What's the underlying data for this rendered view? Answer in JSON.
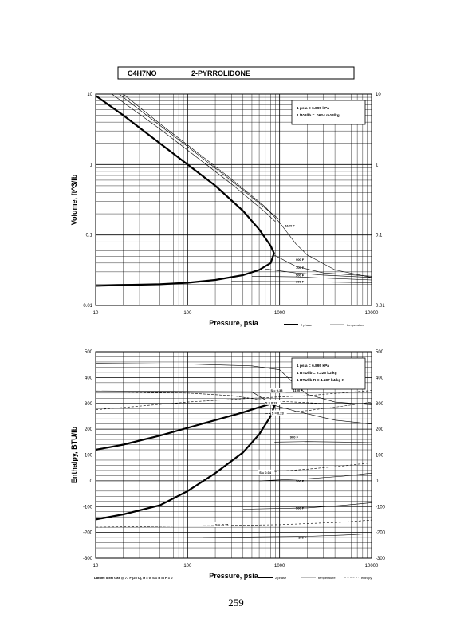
{
  "header": {
    "formula": "C4H7NO",
    "compound": "2-PYRROLIDONE"
  },
  "page_number": "259",
  "chart_data": [
    {
      "type": "line",
      "title": "",
      "xlabel": "Pressure,  psia",
      "ylabel": "Volume, ft^3/lb",
      "xscale": "log",
      "yscale": "log",
      "xlim": [
        10,
        10000
      ],
      "ylim": [
        0.01,
        10
      ],
      "x_ticks": [
        "10",
        "100",
        "1000",
        "10000"
      ],
      "y_ticks_left": [
        "10",
        "1",
        "0.1",
        "0.01"
      ],
      "y_ticks_right": [
        "10",
        "1",
        "0.1",
        "0.01"
      ],
      "grid": true,
      "conversion_box": [
        "1 psia  =  6.895 kPa",
        "1 ft^3/lb  =  .0624 m^3/kg"
      ],
      "legend": {
        "placement": "bottom-right",
        "entries": [
          "2 phase",
          "temperature"
        ]
      },
      "isotherm_labels": [
        "1100 F",
        "900 F",
        "700 F",
        "500 F",
        "300 F"
      ],
      "series": [
        {
          "kind": "2 phase",
          "points": [
            [
              10,
              9.5
            ],
            [
              20,
              5.0
            ],
            [
              50,
              2.0
            ],
            [
              100,
              1.0
            ],
            [
              200,
              0.5
            ],
            [
              400,
              0.22
            ],
            [
              600,
              0.12
            ],
            [
              800,
              0.07
            ],
            [
              870,
              0.055
            ],
            [
              800,
              0.04
            ],
            [
              600,
              0.032
            ],
            [
              400,
              0.027
            ],
            [
              200,
              0.023
            ],
            [
              100,
              0.021
            ],
            [
              50,
              0.02
            ],
            [
              20,
              0.0195
            ],
            [
              10,
              0.019
            ]
          ]
        },
        {
          "kind": "temperature",
          "points": [
            [
              20,
              10
            ],
            [
              50,
              3.8
            ],
            [
              100,
              1.9
            ],
            [
              300,
              0.62
            ],
            [
              700,
              0.25
            ],
            [
              1000,
              0.15
            ],
            [
              1200,
              0.11
            ],
            [
              1500,
              0.075
            ],
            [
              2000,
              0.052
            ],
            [
              4000,
              0.032
            ],
            [
              10000,
              0.025
            ]
          ]
        },
        {
          "kind": "temperature",
          "points": [
            [
              18,
              10
            ],
            [
              50,
              3.6
            ],
            [
              100,
              1.8
            ],
            [
              300,
              0.59
            ],
            [
              700,
              0.24
            ],
            [
              1000,
              0.165
            ]
          ]
        },
        {
          "kind": "temperature",
          "points": [
            [
              15,
              10
            ],
            [
              50,
              3.2
            ],
            [
              100,
              1.6
            ],
            [
              300,
              0.53
            ],
            [
              700,
              0.21
            ],
            [
              900,
              0.155
            ]
          ]
        },
        {
          "kind": "temperature",
          "points": [
            [
              870,
              0.052
            ],
            [
              1500,
              0.036
            ],
            [
              3000,
              0.029
            ],
            [
              10000,
              0.026
            ]
          ]
        },
        {
          "kind": "temperature",
          "points": [
            [
              700,
              0.033
            ],
            [
              1500,
              0.029
            ],
            [
              3000,
              0.027
            ],
            [
              10000,
              0.025
            ]
          ]
        },
        {
          "kind": "temperature",
          "points": [
            [
              500,
              0.026
            ],
            [
              1500,
              0.0255
            ],
            [
              3000,
              0.0245
            ],
            [
              10000,
              0.023
            ]
          ]
        },
        {
          "kind": "temperature",
          "points": [
            [
              300,
              0.022
            ],
            [
              1500,
              0.0218
            ],
            [
              3000,
              0.0215
            ],
            [
              10000,
              0.021
            ]
          ]
        }
      ]
    },
    {
      "type": "line",
      "title": "",
      "xlabel": "Pressure,  psia",
      "ylabel": "Enthalpy, BTU/lb",
      "xscale": "log",
      "yscale": "linear",
      "xlim": [
        10,
        10000
      ],
      "ylim": [
        -300,
        500
      ],
      "x_ticks": [
        "10",
        "100",
        "1000",
        "10000"
      ],
      "y_ticks_left": [
        "500",
        "400",
        "300",
        "200",
        "100",
        "0",
        "-100",
        "-200",
        "-300"
      ],
      "y_ticks_right": [
        "500",
        "400",
        "300",
        "200",
        "100",
        "0",
        "-100",
        "-200",
        "-300"
      ],
      "grid": true,
      "conversion_box": [
        "1 psia  =  6.895 kPa",
        "1 BTU/lb  =  2.326 kJ/kg",
        "1 BTU/lb R  =  4.187 kJ/kg K"
      ],
      "legend": {
        "placement": "bottom-right",
        "entries": [
          "2 phase",
          "temperature",
          "entropy"
        ]
      },
      "isotherm_labels": [
        "1100 F",
        "900 F",
        "700 F",
        "500 F",
        "300 F"
      ],
      "entropy_labels": [
        "S = 0.33",
        "S = 0.26",
        "S = 0.23",
        "S = 0.04",
        "S = -0.15"
      ],
      "footnote": "Datum: Ideal Gas @ 77 F (25 C),  H = 0,  S = R ln P = 0",
      "series": [
        {
          "kind": "2 phase",
          "points": [
            [
              10,
              120
            ],
            [
              20,
              140
            ],
            [
              50,
              175
            ],
            [
              100,
              205
            ],
            [
              200,
              235
            ],
            [
              400,
              265
            ],
            [
              600,
              285
            ],
            [
              800,
              298
            ],
            [
              880,
              292
            ],
            [
              800,
              250
            ],
            [
              600,
              180
            ],
            [
              400,
              110
            ],
            [
              200,
              30
            ],
            [
              100,
              -40
            ],
            [
              50,
              -95
            ],
            [
              20,
              -130
            ],
            [
              10,
              -150
            ]
          ]
        },
        {
          "kind": "temperature",
          "points": [
            [
              10,
              455
            ],
            [
              100,
              452
            ],
            [
              500,
              445
            ],
            [
              1000,
              430
            ],
            [
              1500,
              370
            ],
            [
              2000,
              335
            ],
            [
              4000,
              305
            ],
            [
              10000,
              295
            ]
          ]
        },
        {
          "kind": "temperature",
          "points": [
            [
              10,
              348
            ],
            [
              500,
              345
            ],
            [
              880,
              292
            ],
            [
              1500,
              270
            ],
            [
              4000,
              235
            ],
            [
              10000,
              220
            ]
          ]
        },
        {
          "kind": "temperature",
          "points": [
            [
              880,
              150
            ],
            [
              2000,
              152
            ],
            [
              5000,
              150
            ],
            [
              10000,
              148
            ]
          ]
        },
        {
          "kind": "temperature",
          "points": [
            [
              600,
              0
            ],
            [
              2000,
              8
            ],
            [
              5000,
              18
            ],
            [
              10000,
              30
            ]
          ]
        },
        {
          "kind": "temperature",
          "points": [
            [
              400,
              -110
            ],
            [
              2000,
              -105
            ],
            [
              5000,
              -95
            ],
            [
              10000,
              -85
            ]
          ]
        },
        {
          "kind": "temperature",
          "points": [
            [
              100,
              -220
            ],
            [
              2000,
              -215
            ],
            [
              5000,
              -210
            ],
            [
              10000,
              -205
            ]
          ]
        },
        {
          "kind": "entropy",
          "points": [
            [
              10,
              275
            ],
            [
              100,
              305
            ],
            [
              500,
              320
            ],
            [
              2000,
              330
            ],
            [
              10000,
              350
            ]
          ]
        },
        {
          "kind": "entropy",
          "points": [
            [
              10,
              345
            ],
            [
              100,
              340
            ],
            [
              300,
              330
            ],
            [
              600,
              315
            ],
            [
              1000,
              308
            ],
            [
              3000,
              300
            ],
            [
              10000,
              298
            ]
          ]
        },
        {
          "kind": "entropy",
          "points": [
            [
              700,
              260
            ],
            [
              2000,
              272
            ],
            [
              5000,
              290
            ],
            [
              10000,
              305
            ]
          ]
        },
        {
          "kind": "entropy",
          "points": [
            [
              800,
              35
            ],
            [
              2000,
              45
            ],
            [
              5000,
              58
            ],
            [
              10000,
              70
            ]
          ]
        },
        {
          "kind": "entropy",
          "points": [
            [
              10,
              -180
            ],
            [
              100,
              -175
            ],
            [
              1000,
              -170
            ],
            [
              5000,
              -160
            ],
            [
              10000,
              -152
            ]
          ]
        }
      ]
    }
  ]
}
